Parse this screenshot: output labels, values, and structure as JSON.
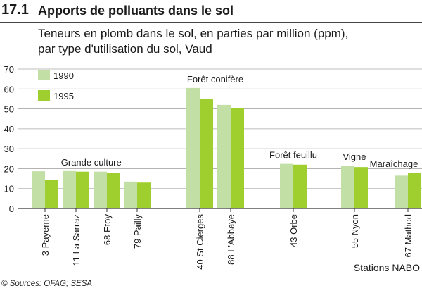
{
  "figure": {
    "number": "17.1",
    "title": "Apports de polluants dans le sol",
    "subtitle_line1": "Teneurs en plomb dans le sol, en parties par million (ppm),",
    "subtitle_line2": "par type d'utilisation du sol, Vaud",
    "source": "© Sources: OFAG;  SESA"
  },
  "chart_data": {
    "type": "bar",
    "title": "Teneurs en plomb dans le sol, en parties par million (ppm), par type d'utilisation du sol, Vaud",
    "xlabel": "Stations NABO",
    "ylabel": "",
    "ylim": [
      0,
      70
    ],
    "yticks": [
      0,
      10,
      20,
      30,
      40,
      50,
      60,
      70
    ],
    "grid": true,
    "legend_position": "top-left",
    "categories": [
      "3 Payerne",
      "11 La Sarraz",
      "68 Etoy",
      "79 Pailly",
      "40 St Cierges",
      "88 L'Abbaye",
      "43 Orbe",
      "55 Nyon",
      "67 Mathod"
    ],
    "series": [
      {
        "name": "1990",
        "color": "#c2e0a6",
        "values": [
          18.7,
          18.8,
          18.5,
          13.5,
          60.5,
          52.0,
          22.4,
          21.5,
          16.5
        ]
      },
      {
        "name": "1995",
        "color": "#9fcf2e",
        "values": [
          14.3,
          18.5,
          18.0,
          13.0,
          55.0,
          50.5,
          22.0,
          20.8,
          18.0
        ]
      }
    ],
    "groups": [
      {
        "label": "Grande culture",
        "members": [
          0,
          1,
          2,
          3
        ]
      },
      {
        "label": "Forêt conifère",
        "members": [
          4,
          5
        ]
      },
      {
        "label": "Forêt feuillu",
        "members": [
          6
        ]
      },
      {
        "label": "Vigne",
        "members": [
          7
        ]
      },
      {
        "label": "Maraîchage",
        "members": [
          8
        ]
      }
    ]
  }
}
